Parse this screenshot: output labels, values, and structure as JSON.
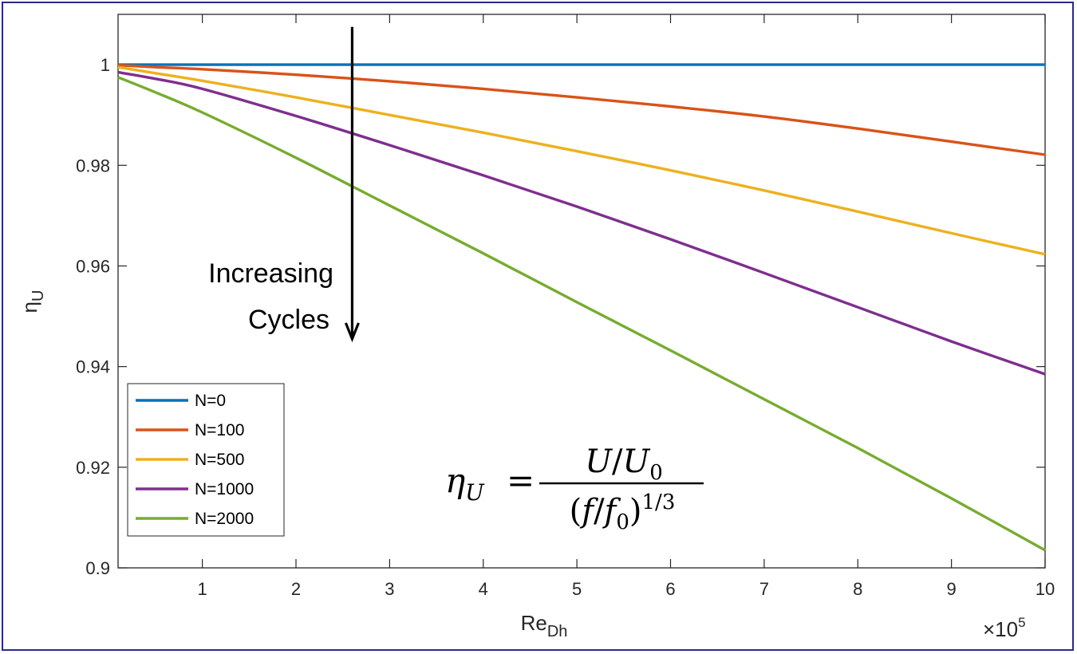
{
  "chart_data": {
    "type": "line",
    "title": "",
    "xlabel": "Re",
    "xlabel_sub": "Dh",
    "ylabel": "η",
    "ylabel_sub": "U",
    "x_multiplier": "×10",
    "x_multiplier_exp": "5",
    "xlim": [
      0.1,
      10
    ],
    "ylim": [
      0.9,
      1.01
    ],
    "xticks": [
      "1",
      "2",
      "3",
      "4",
      "5",
      "6",
      "7",
      "8",
      "9",
      "10"
    ],
    "yticks": [
      "0.9",
      "0.92",
      "0.94",
      "0.96",
      "0.98",
      "1"
    ],
    "grid": false,
    "legend_position": "bottom-left",
    "x": [
      0.1,
      0.5,
      1,
      2,
      3,
      4,
      5,
      6,
      7,
      8,
      9,
      10
    ],
    "series": [
      {
        "name": "N=0",
        "color": "#0072BD",
        "values": [
          1.0,
          1.0,
          1.0,
          1.0,
          1.0,
          1.0,
          1.0,
          1.0,
          1.0,
          1.0,
          1.0,
          1.0
        ]
      },
      {
        "name": "N=100",
        "color": "#D95319",
        "values": [
          0.9999,
          0.9995,
          0.9991,
          0.998,
          0.9967,
          0.9952,
          0.9935,
          0.9917,
          0.9897,
          0.9873,
          0.9847,
          0.9821
        ]
      },
      {
        "name": "N=500",
        "color": "#EDB120",
        "values": [
          0.9995,
          0.9983,
          0.9968,
          0.9935,
          0.99,
          0.9865,
          0.9828,
          0.979,
          0.975,
          0.9708,
          0.9665,
          0.9623
        ]
      },
      {
        "name": "N=1000",
        "color": "#7E2F8E",
        "values": [
          0.9985,
          0.9972,
          0.9952,
          0.9898,
          0.984,
          0.978,
          0.9718,
          0.9653,
          0.9586,
          0.9518,
          0.945,
          0.9385
        ]
      },
      {
        "name": "N=2000",
        "color": "#77AC30",
        "values": [
          0.9975,
          0.9945,
          0.9905,
          0.9815,
          0.972,
          0.9625,
          0.9528,
          0.9432,
          0.9335,
          0.9238,
          0.9138,
          0.9035
        ]
      }
    ],
    "annotations": {
      "arrow_line1": "Increasing",
      "arrow_line2": "Cycles",
      "arrow_x": 2.6,
      "arrow_y_from": 1.0075,
      "arrow_y_to": 0.9455,
      "equation": {
        "lhs": "η",
        "lhs_sub": "U",
        "equals": "=",
        "num_a": "U",
        "num_slash": "/",
        "num_b": "U",
        "num_b_sub": "0",
        "den_open": "(",
        "den_a": "f",
        "den_slash": "/",
        "den_b": "f",
        "den_b_sub": "0",
        "den_close": ")",
        "den_exp": "1/3"
      }
    }
  }
}
